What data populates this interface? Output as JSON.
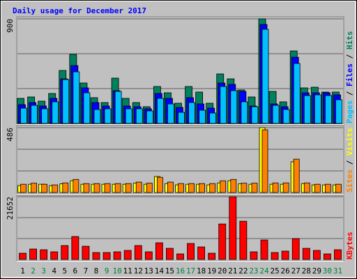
{
  "chart_data": {
    "type": "bar",
    "title": "Daily usage for December 2017",
    "categories": [
      "1",
      "2",
      "3",
      "4",
      "5",
      "6",
      "7",
      "8",
      "9",
      "10",
      "11",
      "12",
      "13",
      "14",
      "15",
      "16",
      "17",
      "18",
      "19",
      "20",
      "21",
      "22",
      "23",
      "24",
      "25",
      "26",
      "27",
      "28",
      "29",
      "30",
      "31"
    ],
    "category_colors": [
      "#000000",
      "#008040",
      "#008040",
      "#000000",
      "#000000",
      "#000000",
      "#000000",
      "#000000",
      "#008040",
      "#008040",
      "#000000",
      "#000000",
      "#000000",
      "#000000",
      "#000000",
      "#008040",
      "#008040",
      "#000000",
      "#000000",
      "#000000",
      "#000000",
      "#000000",
      "#008040",
      "#008040",
      "#000000",
      "#000000",
      "#000000",
      "#000000",
      "#000000",
      "#008040",
      "#008040"
    ],
    "panels": [
      {
        "ylim": [
          0,
          900
        ],
        "yticks": [
          900
        ],
        "series": [
          {
            "name": "Hits",
            "color": "#00805c",
            "values": [
              216,
              228,
              192,
              258,
              456,
              594,
              348,
              222,
              180,
              390,
              216,
              180,
              144,
              318,
              264,
              174,
              318,
              270,
              174,
              426,
              384,
              288,
              228,
              900,
              276,
              186,
              624,
              306,
              312,
              270,
              270
            ]
          },
          {
            "name": "Files",
            "color": "#0000ff",
            "values": [
              162,
              180,
              150,
              216,
              384,
              498,
              306,
              180,
              150,
              282,
              150,
              144,
              126,
              258,
              216,
              138,
              222,
              168,
              132,
              348,
              336,
              276,
              150,
              852,
              168,
              144,
              570,
              264,
              264,
              264,
              246
            ]
          },
          {
            "name": "Pages",
            "color": "#00c0ff",
            "values": [
              132,
              156,
              126,
              186,
              378,
              444,
              264,
              120,
              126,
              276,
              126,
              126,
              108,
              216,
              168,
              96,
              180,
              114,
              90,
              318,
              282,
              186,
              144,
              810,
              156,
              120,
              516,
              240,
              246,
              240,
              204
            ]
          }
        ]
      },
      {
        "ylim": [
          0,
          486
        ],
        "yticks": [
          486
        ],
        "series": [
          {
            "name": "Visits",
            "color": "#ffff00",
            "values": [
              52,
              62,
              62,
              52,
              65,
              88,
              62,
              62,
              62,
              62,
              62,
              70,
              62,
              120,
              67,
              57,
              62,
              62,
              57,
              72,
              88,
              65,
              62,
              486,
              62,
              62,
              230,
              67,
              57,
              57,
              57
            ]
          },
          {
            "name": "Sites",
            "color": "#ff8000",
            "values": [
              62,
              70,
              62,
              57,
              72,
              98,
              67,
              67,
              67,
              67,
              67,
              78,
              70,
              114,
              78,
              67,
              67,
              67,
              67,
              88,
              98,
              70,
              70,
              470,
              72,
              72,
              250,
              72,
              62,
              62,
              62
            ]
          }
        ]
      },
      {
        "ylim": [
          0,
          21652
        ],
        "yticks": [
          21652
        ],
        "series": [
          {
            "name": "KBytes",
            "color": "#ff0000",
            "values": [
              2160,
              3600,
              3360,
              2640,
              4800,
              7920,
              4560,
              2400,
              2400,
              2640,
              3120,
              4800,
              2640,
              5760,
              3840,
              1920,
              5520,
              4320,
              2160,
              12240,
              21652,
              13200,
              2640,
              6720,
              2400,
              2880,
              7200,
              3840,
              3120,
              1920,
              3360
            ]
          }
        ]
      }
    ]
  }
}
